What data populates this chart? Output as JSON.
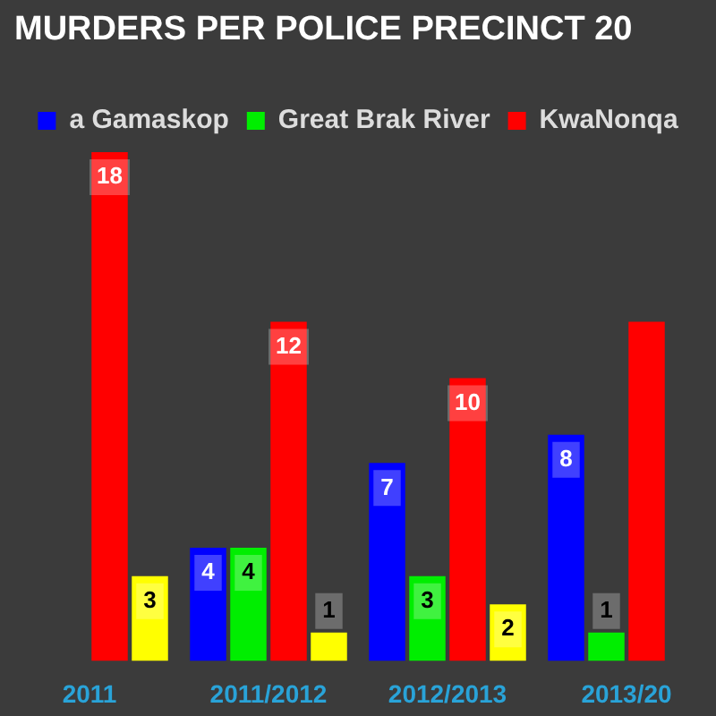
{
  "chart_data": {
    "type": "bar",
    "title": "MURDERS PER POLICE PRECINCT 20",
    "categories": [
      "2011",
      "2011/2012",
      "2012/2013",
      "2013/20"
    ],
    "series": [
      {
        "name": "a Gamaskop",
        "color": "#0000ff",
        "values": [
          null,
          4,
          7,
          8
        ],
        "value_labels": [
          null,
          "4",
          "7",
          "8"
        ]
      },
      {
        "name": "Great Brak River",
        "color": "#00ee00",
        "values": [
          null,
          4,
          3,
          1
        ],
        "value_labels": [
          null,
          "4",
          "3",
          "1"
        ]
      },
      {
        "name": "KwaNonqa",
        "color": "#ff0000",
        "values": [
          18,
          12,
          10,
          12
        ],
        "value_labels": [
          "18",
          "12",
          "10",
          null
        ]
      },
      {
        "color": "#ffff00",
        "values": [
          3,
          1,
          2,
          null
        ],
        "value_labels": [
          "3",
          "1",
          "2",
          null
        ]
      }
    ],
    "legend": "top",
    "grid": false
  }
}
